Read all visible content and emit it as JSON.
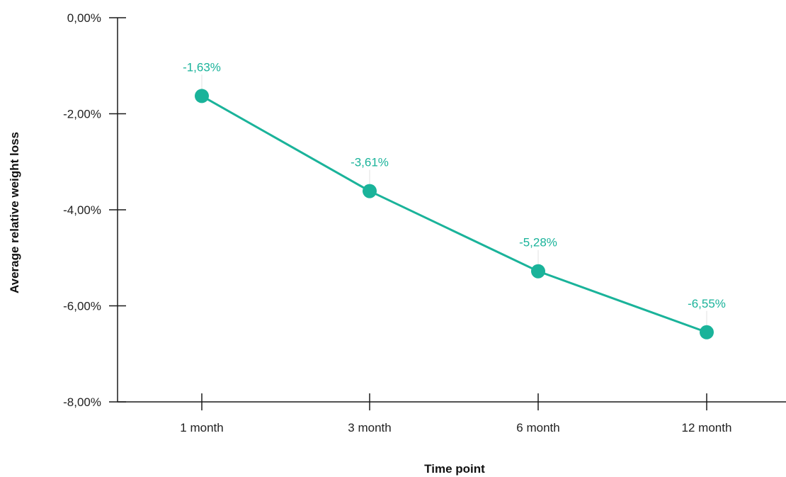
{
  "chart_data": {
    "type": "line",
    "title": "",
    "xlabel": "Time point",
    "ylabel": "Average relative weight loss",
    "categories": [
      "1 month",
      "3 month",
      "6 month",
      "12 month"
    ],
    "series": [
      {
        "values": [
          -1.63,
          -3.61,
          -5.28,
          -6.55
        ],
        "data_labels": [
          "-1,63%",
          "-3,61%",
          "-5,28%",
          "-6,55%"
        ]
      }
    ],
    "ylim": [
      -8,
      0
    ],
    "y_ticks": [
      0,
      -2,
      -4,
      -6,
      -8
    ],
    "y_tick_labels": [
      "0,00%",
      "-2,00%",
      "-4,00%",
      "-6,00%",
      "-8,00%"
    ],
    "grid": false,
    "legend": "none",
    "colors": {
      "series": "#1ab39a",
      "axis": "#1a1a1a"
    }
  }
}
